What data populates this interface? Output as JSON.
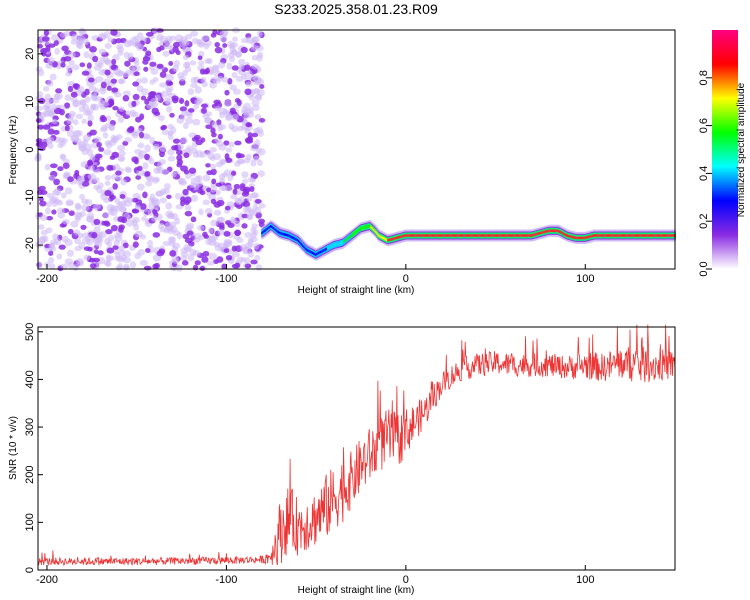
{
  "title": "S233.2025.358.01.23.R09",
  "chart_data": [
    {
      "type": "heatmap",
      "title": "",
      "xlabel": "Height of straight line (km)",
      "ylabel": "Frequency (Hz)",
      "xlim": [
        -205,
        150
      ],
      "ylim": [
        -25,
        25
      ],
      "xticks": [
        -200,
        -100,
        0,
        100
      ],
      "yticks": [
        -20,
        -10,
        0,
        10,
        20
      ],
      "colorbar": {
        "label": "Normalized spectral amplitude",
        "range": [
          0,
          1
        ],
        "ticks": [
          "0.0",
          "0.2",
          "0.4",
          "0.6",
          "0.8"
        ],
        "colors": [
          "#ffffff",
          "#8a2be2",
          "#0000ff",
          "#00ffff",
          "#00ff00",
          "#ffff00",
          "#ff0000",
          "#ff0080"
        ]
      },
      "noise_region_x": [
        -205,
        -80
      ],
      "carrier_track": {
        "x": [
          -80,
          -75,
          -70,
          -65,
          -60,
          -55,
          -50,
          -45,
          -40,
          -35,
          -30,
          -25,
          -20,
          -17,
          -15,
          -10,
          -5,
          0,
          10,
          20,
          30,
          40,
          50,
          60,
          70,
          75,
          80,
          85,
          90,
          95,
          100,
          105,
          110,
          120,
          130,
          140,
          150
        ],
        "y": [
          -17.5,
          -16,
          -17.5,
          -18,
          -19,
          -21,
          -22,
          -21,
          -20,
          -19.5,
          -18,
          -16.5,
          -16,
          -17,
          -18,
          -19,
          -18.5,
          -18,
          -18,
          -18,
          -18,
          -18,
          -18,
          -18,
          -18,
          -17.5,
          -17,
          -17,
          -18,
          -18.5,
          -18.5,
          -18,
          -18,
          -18,
          -18,
          -18,
          -18
        ],
        "amplitude": [
          0.3,
          0.3,
          0.35,
          0.35,
          0.35,
          0.35,
          0.3,
          0.4,
          0.5,
          0.55,
          0.6,
          0.65,
          0.7,
          0.8,
          0.75,
          0.85,
          0.9,
          0.95,
          0.95,
          0.95,
          0.95,
          0.95,
          0.95,
          0.95,
          0.95,
          0.95,
          0.95,
          0.95,
          0.9,
          0.9,
          0.9,
          0.9,
          0.95,
          0.95,
          0.95,
          0.95,
          0.95
        ]
      }
    },
    {
      "type": "line",
      "title": "",
      "xlabel": "Height of straight line (km)",
      "ylabel": "SNR (10 * v/v)",
      "xlim": [
        -205,
        150
      ],
      "ylim": [
        0,
        510
      ],
      "xticks": [
        -200,
        -100,
        0,
        100
      ],
      "yticks": [
        0,
        100,
        200,
        300,
        400,
        500
      ],
      "series": [
        {
          "color": "#ee3333",
          "envelope_x": [
            -205,
            -150,
            -100,
            -80,
            -75,
            -70,
            -65,
            -60,
            -55,
            -50,
            -45,
            -40,
            -35,
            -30,
            -25,
            -20,
            -15,
            -10,
            -5,
            0,
            5,
            10,
            15,
            20,
            30,
            40,
            50,
            60,
            70,
            80,
            90,
            100,
            110,
            120,
            130,
            140,
            150
          ],
          "envelope_mean": [
            18,
            18,
            20,
            22,
            30,
            80,
            110,
            90,
            100,
            110,
            130,
            150,
            170,
            190,
            220,
            240,
            260,
            280,
            270,
            290,
            310,
            330,
            360,
            390,
            420,
            430,
            435,
            430,
            430,
            430,
            425,
            430,
            425,
            435,
            430,
            430,
            430
          ],
          "envelope_spread": [
            8,
            8,
            8,
            8,
            20,
            70,
            70,
            60,
            60,
            60,
            70,
            70,
            70,
            60,
            60,
            60,
            60,
            60,
            60,
            50,
            40,
            35,
            30,
            25,
            25,
            25,
            25,
            25,
            25,
            25,
            25,
            30,
            30,
            35,
            40,
            35,
            30
          ]
        }
      ]
    }
  ]
}
